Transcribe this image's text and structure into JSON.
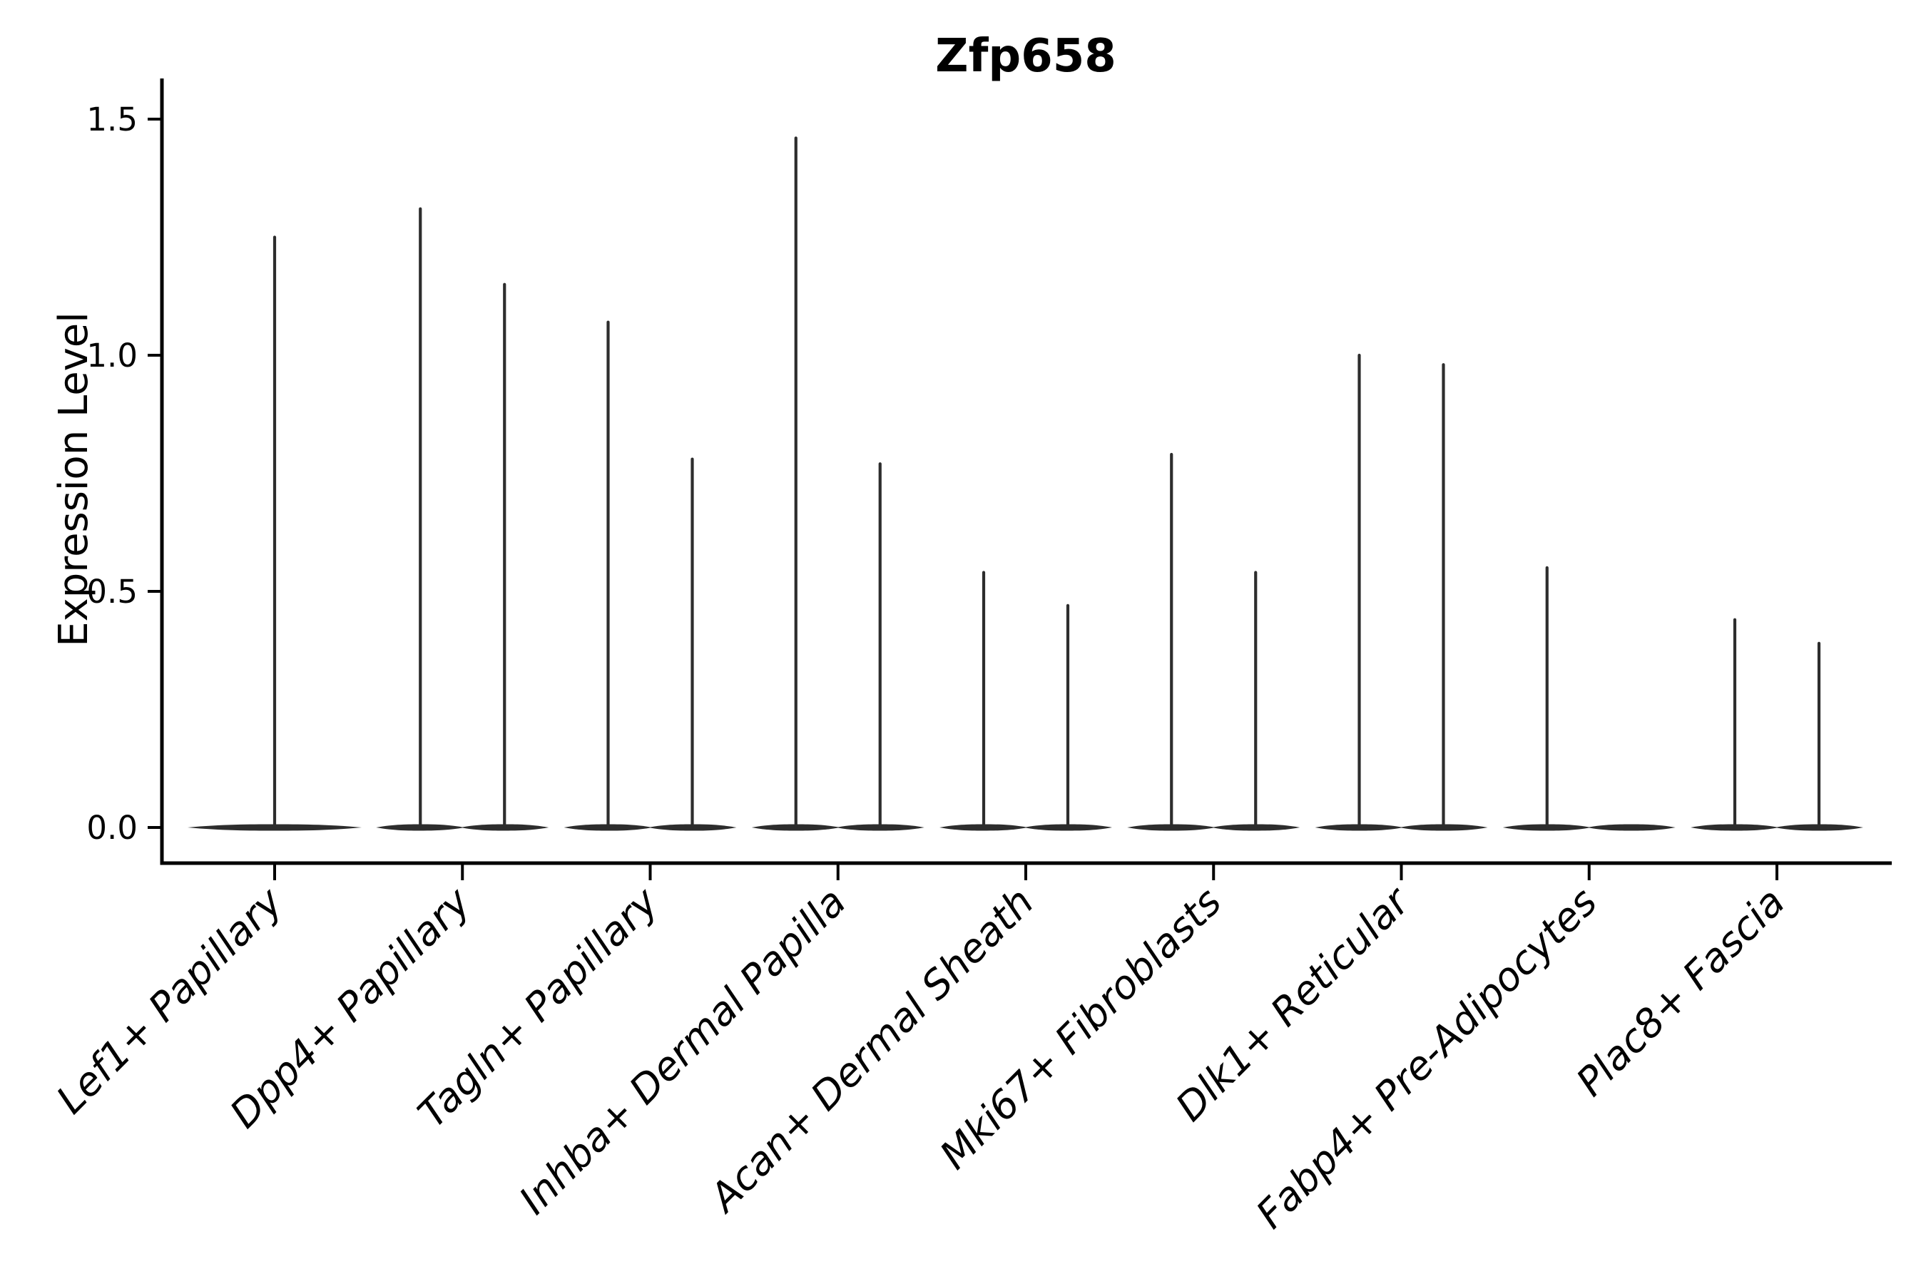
{
  "figure": {
    "title": "Zfp658",
    "ylabel": "Expression Level"
  },
  "chart_data": {
    "type": "violin",
    "title": "Zfp658",
    "xlabel": "",
    "ylabel": "Expression Level",
    "ytick_labels": [
      "0.0",
      "0.5",
      "1.0",
      "1.5"
    ],
    "ytick_values": [
      0.0,
      0.5,
      1.0,
      1.5
    ],
    "ylim": [
      -0.08,
      1.58
    ],
    "grid": false,
    "legend": false,
    "categories": [
      "Lef1+ Papillary",
      "Dpp4+ Papillary",
      "Tagln+ Papillary",
      "Inhba+ Dermal Papilla",
      "Acan+ Dermal Sheath",
      "Mki67+ Fibroblasts",
      "Dlk1+ Reticular",
      "Fabp4+ Pre-Adipocytes",
      "Plac8+ Fascia"
    ],
    "series": [
      {
        "category": "Lef1+ Papillary",
        "violins": [
          {
            "position": "center",
            "max": 1.25
          }
        ]
      },
      {
        "category": "Dpp4+ Papillary",
        "violins": [
          {
            "position": "left",
            "max": 1.31
          },
          {
            "position": "right",
            "max": 1.15
          }
        ]
      },
      {
        "category": "Tagln+ Papillary",
        "violins": [
          {
            "position": "left",
            "max": 1.07
          },
          {
            "position": "right",
            "max": 0.78
          }
        ]
      },
      {
        "category": "Inhba+ Dermal Papilla",
        "violins": [
          {
            "position": "left",
            "max": 1.46
          },
          {
            "position": "right",
            "max": 0.77
          }
        ]
      },
      {
        "category": "Acan+ Dermal Sheath",
        "violins": [
          {
            "position": "left",
            "max": 0.54
          },
          {
            "position": "right",
            "max": 0.47
          }
        ]
      },
      {
        "category": "Mki67+ Fibroblasts",
        "violins": [
          {
            "position": "left",
            "max": 0.79
          },
          {
            "position": "right",
            "max": 0.54
          }
        ]
      },
      {
        "category": "Dlk1+ Reticular",
        "violins": [
          {
            "position": "left",
            "max": 1.0
          },
          {
            "position": "right",
            "max": 0.98
          }
        ]
      },
      {
        "category": "Fabp4+ Pre-Adipocytes",
        "violins": [
          {
            "position": "left",
            "max": 0.55
          },
          {
            "position": "right",
            "max": 0.0
          }
        ]
      },
      {
        "category": "Plac8+ Fascia",
        "violins": [
          {
            "position": "left",
            "max": 0.44
          },
          {
            "position": "right",
            "max": 0.39
          }
        ]
      }
    ],
    "colors": {
      "violin": "#2d2d2d",
      "axis": "#000000",
      "text": "#000000",
      "background": "#ffffff"
    },
    "style": {
      "x_label_rotation_deg": 45,
      "x_labels_italic": true,
      "title_bold": true,
      "spines_shown": [
        "left",
        "bottom"
      ]
    }
  }
}
